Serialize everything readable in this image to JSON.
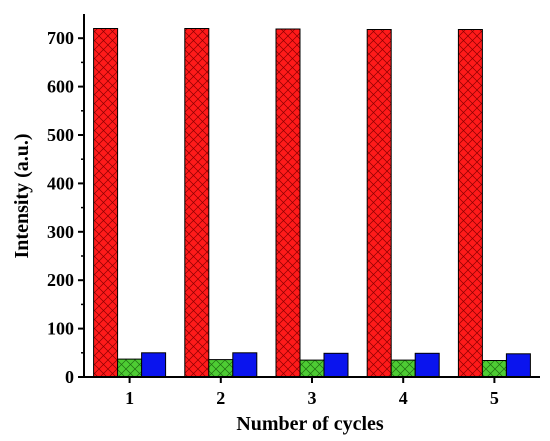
{
  "chart_data": {
    "type": "bar",
    "title": "",
    "xlabel": "Number of cycles",
    "ylabel": "Intensity (a.u.)",
    "categories": [
      "1",
      "2",
      "3",
      "4",
      "5"
    ],
    "ylim": [
      0,
      750
    ],
    "yticks": [
      0,
      100,
      200,
      300,
      400,
      500,
      600,
      700
    ],
    "series": [
      {
        "values": [
          720,
          720,
          719,
          718,
          718
        ],
        "color": "#ff1a1a",
        "pattern": "crosshatch"
      },
      {
        "values": [
          37,
          36,
          35,
          35,
          34
        ],
        "color": "#4dcc33",
        "pattern": "crosshatch"
      },
      {
        "values": [
          50,
          50,
          49,
          49,
          48
        ],
        "color": "#0a14ee",
        "pattern": "solid"
      }
    ],
    "grid": false,
    "legend": "none"
  }
}
